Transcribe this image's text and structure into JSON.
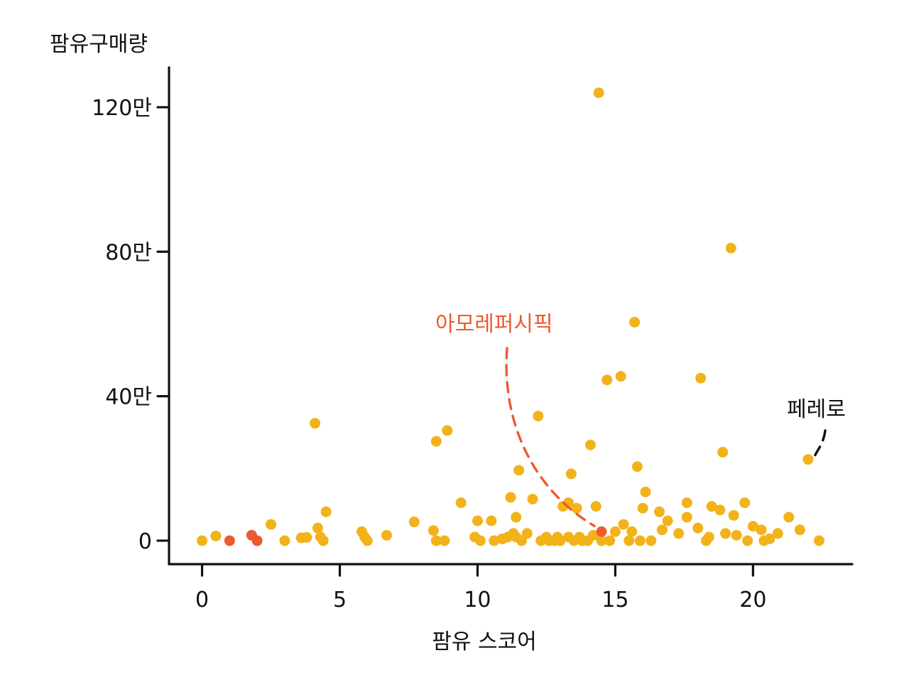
{
  "colors": {
    "point": "#F2B31A",
    "highlight": "#EE5A2F",
    "axis": "#111111",
    "text": "#111111"
  },
  "chart_data": {
    "type": "scatter",
    "title": "",
    "xlabel": "팜유 스코어",
    "ylabel": "팜유구매량",
    "xlim": [
      -1.2,
      23.6
    ],
    "ylim": [
      -65000,
      1310000
    ],
    "x_ticks": [
      0,
      5,
      10,
      15,
      20
    ],
    "x_tick_labels": [
      "0",
      "5",
      "10",
      "15",
      "20"
    ],
    "y_ticks": [
      0,
      400000,
      800000,
      1200000
    ],
    "y_tick_labels": [
      "0",
      "40만",
      "80만",
      "120만"
    ],
    "grid": false,
    "legend": "none",
    "series": [
      {
        "role": "default",
        "color": "#F2B31A",
        "points": [
          [
            0,
            0
          ],
          [
            0.5,
            13000
          ],
          [
            2.5,
            45000
          ],
          [
            3.0,
            0
          ],
          [
            3.6,
            8000
          ],
          [
            3.8,
            9000
          ],
          [
            4.1,
            325000
          ],
          [
            4.2,
            35000
          ],
          [
            4.3,
            10000
          ],
          [
            4.4,
            0
          ],
          [
            4.5,
            80000
          ],
          [
            5.8,
            25000
          ],
          [
            5.9,
            10000
          ],
          [
            6.0,
            0
          ],
          [
            6.7,
            15000
          ],
          [
            7.7,
            52000
          ],
          [
            8.4,
            28000
          ],
          [
            8.5,
            0
          ],
          [
            8.5,
            275000
          ],
          [
            8.8,
            0
          ],
          [
            8.9,
            305000
          ],
          [
            9.4,
            105000
          ],
          [
            9.9,
            10000
          ],
          [
            10.0,
            55000
          ],
          [
            10.1,
            0
          ],
          [
            10.5,
            55000
          ],
          [
            10.6,
            0
          ],
          [
            10.9,
            5000
          ],
          [
            11.1,
            10000
          ],
          [
            11.2,
            120000
          ],
          [
            11.3,
            20000
          ],
          [
            11.4,
            65000
          ],
          [
            11.4,
            10000
          ],
          [
            11.5,
            195000
          ],
          [
            11.6,
            0
          ],
          [
            11.8,
            20000
          ],
          [
            12.0,
            115000
          ],
          [
            12.2,
            345000
          ],
          [
            12.3,
            0
          ],
          [
            12.5,
            10000
          ],
          [
            12.6,
            0
          ],
          [
            12.8,
            0
          ],
          [
            12.9,
            10000
          ],
          [
            13.0,
            0
          ],
          [
            13.1,
            95000
          ],
          [
            13.3,
            105000
          ],
          [
            13.3,
            10000
          ],
          [
            13.4,
            185000
          ],
          [
            13.5,
            0
          ],
          [
            13.6,
            90000
          ],
          [
            13.7,
            10000
          ],
          [
            13.8,
            0
          ],
          [
            14.0,
            0
          ],
          [
            14.1,
            265000
          ],
          [
            14.2,
            15000
          ],
          [
            14.3,
            95000
          ],
          [
            14.4,
            1240000
          ],
          [
            14.5,
            0
          ],
          [
            14.7,
            445000
          ],
          [
            14.8,
            0
          ],
          [
            15.0,
            25000
          ],
          [
            15.2,
            455000
          ],
          [
            15.3,
            45000
          ],
          [
            15.5,
            0
          ],
          [
            15.6,
            25000
          ],
          [
            15.7,
            605000
          ],
          [
            15.8,
            205000
          ],
          [
            15.9,
            0
          ],
          [
            16.0,
            90000
          ],
          [
            16.1,
            135000
          ],
          [
            16.3,
            0
          ],
          [
            16.6,
            80000
          ],
          [
            16.7,
            30000
          ],
          [
            16.9,
            55000
          ],
          [
            17.3,
            20000
          ],
          [
            17.6,
            105000
          ],
          [
            17.6,
            65000
          ],
          [
            18.0,
            35000
          ],
          [
            18.1,
            450000
          ],
          [
            18.3,
            0
          ],
          [
            18.4,
            10000
          ],
          [
            18.5,
            95000
          ],
          [
            18.8,
            85000
          ],
          [
            18.9,
            245000
          ],
          [
            19.0,
            20000
          ],
          [
            19.2,
            810000
          ],
          [
            19.3,
            70000
          ],
          [
            19.4,
            15000
          ],
          [
            19.7,
            105000
          ],
          [
            19.8,
            0
          ],
          [
            20.0,
            40000
          ],
          [
            20.3,
            30000
          ],
          [
            20.4,
            0
          ],
          [
            20.6,
            5000
          ],
          [
            20.9,
            20000
          ],
          [
            21.3,
            65000
          ],
          [
            21.7,
            30000
          ],
          [
            22.0,
            225000
          ],
          [
            22.4,
            0
          ]
        ]
      },
      {
        "role": "highlight",
        "color": "#EE5A2F",
        "points": [
          [
            1.0,
            0
          ],
          [
            1.8,
            15000
          ],
          [
            2.0,
            0
          ],
          [
            14.5,
            25000
          ]
        ]
      }
    ],
    "annotations": [
      {
        "text": "아모레퍼시픽",
        "color": "#EE5A2F",
        "point": [
          14.5,
          25000
        ]
      },
      {
        "text": "페레로",
        "color": "#111111",
        "point": [
          22.0,
          225000
        ]
      }
    ]
  }
}
